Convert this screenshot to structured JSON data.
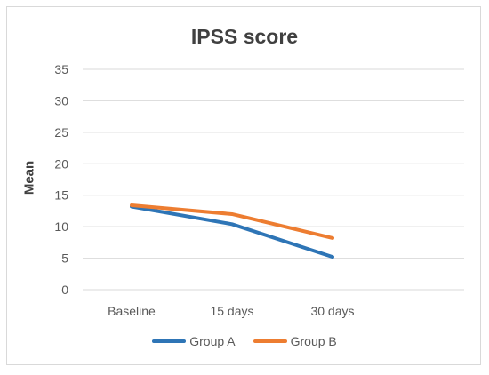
{
  "chart_data": {
    "type": "line",
    "title": "IPSS score",
    "xlabel": "",
    "ylabel": "Mean",
    "categories": [
      "Baseline",
      "15 days",
      "30 days"
    ],
    "ylim": [
      0,
      35
    ],
    "yticks": [
      0,
      5,
      10,
      15,
      20,
      25,
      30,
      35
    ],
    "grid": true,
    "legend_position": "bottom",
    "series": [
      {
        "name": "Group A",
        "color": "#2E75B6",
        "values": [
          13.2,
          10.4,
          5.2
        ]
      },
      {
        "name": "Group B",
        "color": "#ED7D31",
        "values": [
          13.4,
          12.0,
          8.2
        ]
      }
    ]
  }
}
